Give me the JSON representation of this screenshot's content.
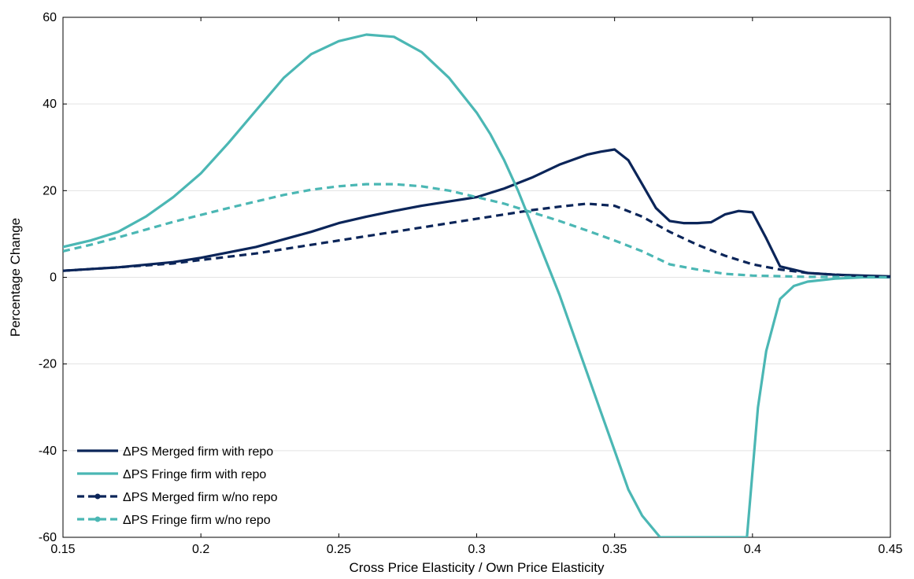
{
  "chart_data": {
    "type": "line",
    "xlabel": "Cross Price Elasticity / Own Price Elasticity",
    "ylabel": "Percentage Change",
    "xlim": [
      0.15,
      0.45
    ],
    "ylim": [
      -60,
      60
    ],
    "x_ticks": [
      "0.15",
      "0.2",
      "0.25",
      "0.3",
      "0.35",
      "0.4",
      "0.45"
    ],
    "y_ticks": [
      "-60",
      "-40",
      "-20",
      "0",
      "20",
      "40",
      "60"
    ],
    "grid": "horizontal",
    "legend_position": "bottom-left",
    "colors": {
      "navy": "#0b2559",
      "teal": "#4bb7b4"
    },
    "series": [
      {
        "name": "ΔPS Merged firm with repo",
        "color": "#0b2559",
        "style": "solid",
        "points": [
          [
            0.15,
            1.5
          ],
          [
            0.17,
            2.3
          ],
          [
            0.19,
            3.5
          ],
          [
            0.2,
            4.5
          ],
          [
            0.22,
            7
          ],
          [
            0.24,
            10.5
          ],
          [
            0.25,
            12.5
          ],
          [
            0.26,
            14
          ],
          [
            0.27,
            15.3
          ],
          [
            0.28,
            16.5
          ],
          [
            0.29,
            17.5
          ],
          [
            0.3,
            18.5
          ],
          [
            0.31,
            20.5
          ],
          [
            0.32,
            23
          ],
          [
            0.33,
            26
          ],
          [
            0.34,
            28.3
          ],
          [
            0.345,
            29
          ],
          [
            0.35,
            29.5
          ],
          [
            0.355,
            27
          ],
          [
            0.36,
            21.5
          ],
          [
            0.365,
            16
          ],
          [
            0.37,
            13
          ],
          [
            0.375,
            12.5
          ],
          [
            0.38,
            12.5
          ],
          [
            0.385,
            12.7
          ],
          [
            0.39,
            14.5
          ],
          [
            0.395,
            15.3
          ],
          [
            0.4,
            15
          ],
          [
            0.405,
            9
          ],
          [
            0.41,
            2.5
          ],
          [
            0.42,
            1
          ],
          [
            0.43,
            0.6
          ],
          [
            0.44,
            0.4
          ],
          [
            0.45,
            0.2
          ]
        ]
      },
      {
        "name": "ΔPS Fringe firm with repo",
        "color": "#4bb7b4",
        "style": "solid",
        "points": [
          [
            0.15,
            7
          ],
          [
            0.16,
            8.5
          ],
          [
            0.17,
            10.5
          ],
          [
            0.18,
            14
          ],
          [
            0.19,
            18.5
          ],
          [
            0.2,
            24
          ],
          [
            0.21,
            31
          ],
          [
            0.22,
            38.5
          ],
          [
            0.23,
            46
          ],
          [
            0.24,
            51.5
          ],
          [
            0.25,
            54.5
          ],
          [
            0.26,
            56
          ],
          [
            0.27,
            55.5
          ],
          [
            0.28,
            52
          ],
          [
            0.29,
            46
          ],
          [
            0.3,
            38
          ],
          [
            0.305,
            33
          ],
          [
            0.31,
            27
          ],
          [
            0.315,
            20
          ],
          [
            0.32,
            12
          ],
          [
            0.325,
            4
          ],
          [
            0.33,
            -4
          ],
          [
            0.335,
            -13
          ],
          [
            0.34,
            -22
          ],
          [
            0.345,
            -31
          ],
          [
            0.35,
            -40
          ],
          [
            0.355,
            -49
          ],
          [
            0.36,
            -55
          ],
          [
            0.3665,
            -60
          ],
          [
            0.398,
            -60
          ],
          [
            0.4,
            -45
          ],
          [
            0.402,
            -30
          ],
          [
            0.405,
            -17
          ],
          [
            0.41,
            -5
          ],
          [
            0.415,
            -2
          ],
          [
            0.42,
            -1
          ],
          [
            0.43,
            -0.3
          ],
          [
            0.44,
            0
          ],
          [
            0.45,
            0
          ]
        ]
      },
      {
        "name": "ΔPS Merged firm w/no repo",
        "color": "#0b2559",
        "style": "dashed",
        "points": [
          [
            0.15,
            1.5
          ],
          [
            0.17,
            2.3
          ],
          [
            0.19,
            3.2
          ],
          [
            0.2,
            4
          ],
          [
            0.22,
            5.5
          ],
          [
            0.24,
            7.5
          ],
          [
            0.26,
            9.5
          ],
          [
            0.28,
            11.5
          ],
          [
            0.3,
            13.5
          ],
          [
            0.32,
            15.5
          ],
          [
            0.33,
            16.3
          ],
          [
            0.34,
            17
          ],
          [
            0.35,
            16.5
          ],
          [
            0.36,
            14
          ],
          [
            0.37,
            10.5
          ],
          [
            0.38,
            7.5
          ],
          [
            0.39,
            5
          ],
          [
            0.4,
            3
          ],
          [
            0.41,
            1.8
          ],
          [
            0.42,
            1
          ],
          [
            0.43,
            0.6
          ],
          [
            0.44,
            0.3
          ],
          [
            0.45,
            0.1
          ]
        ]
      },
      {
        "name": "ΔPS Fringe firm w/no repo",
        "color": "#4bb7b4",
        "style": "dashed",
        "points": [
          [
            0.15,
            6
          ],
          [
            0.16,
            7.5
          ],
          [
            0.17,
            9.2
          ],
          [
            0.18,
            11
          ],
          [
            0.19,
            12.8
          ],
          [
            0.2,
            14.4
          ],
          [
            0.21,
            16
          ],
          [
            0.22,
            17.5
          ],
          [
            0.23,
            19
          ],
          [
            0.24,
            20.2
          ],
          [
            0.25,
            21
          ],
          [
            0.26,
            21.5
          ],
          [
            0.27,
            21.5
          ],
          [
            0.28,
            21
          ],
          [
            0.29,
            20
          ],
          [
            0.3,
            18.5
          ],
          [
            0.31,
            17
          ],
          [
            0.32,
            15
          ],
          [
            0.33,
            13
          ],
          [
            0.34,
            10.8
          ],
          [
            0.35,
            8.5
          ],
          [
            0.36,
            6
          ],
          [
            0.37,
            3
          ],
          [
            0.38,
            1.8
          ],
          [
            0.39,
            0.8
          ],
          [
            0.4,
            0.4
          ],
          [
            0.42,
            0.1
          ],
          [
            0.45,
            0
          ]
        ]
      }
    ]
  }
}
